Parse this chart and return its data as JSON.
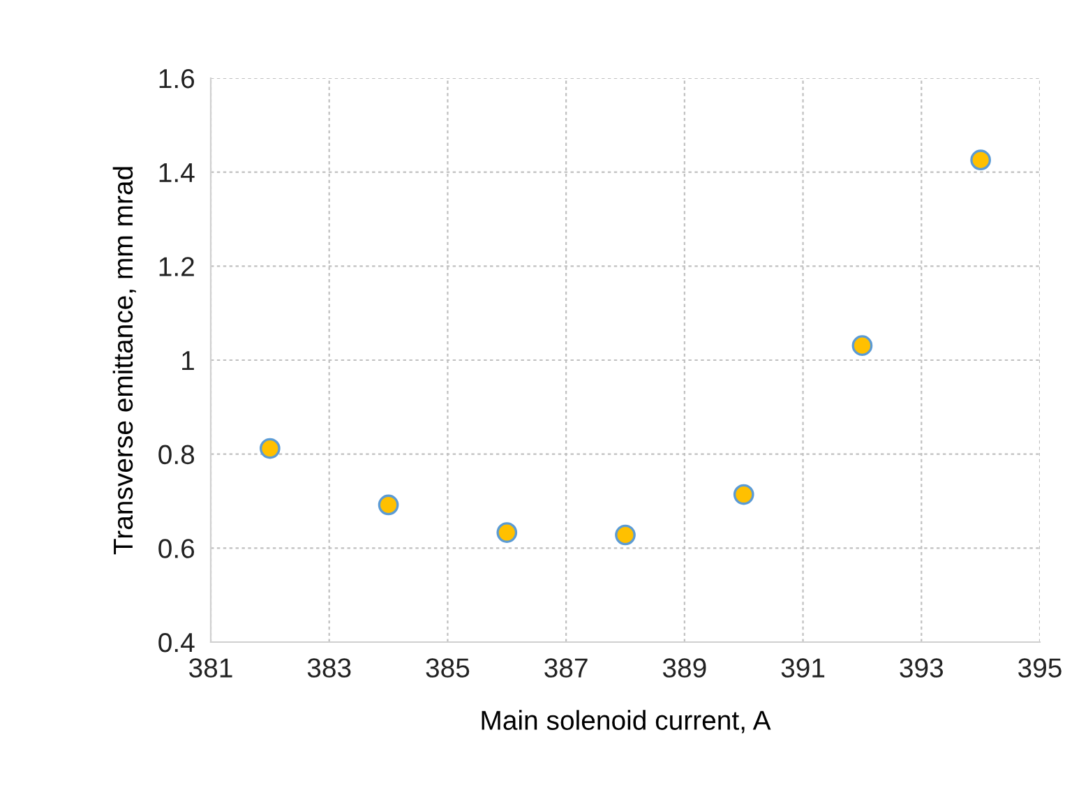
{
  "chart_data": {
    "type": "scatter",
    "xlabel": "Main solenoid current, A",
    "ylabel": "Transverse emittance, mm mrad",
    "x": [
      382,
      384,
      386,
      388,
      390,
      392,
      394
    ],
    "series": [
      {
        "color": "#ffc000",
        "values": [
          0.812,
          0.692,
          0.633,
          0.628,
          0.714,
          1.031,
          1.426
        ]
      }
    ],
    "xlim": [
      381,
      395
    ],
    "xticks": [
      381,
      383,
      385,
      387,
      389,
      391,
      393,
      395
    ],
    "ylim": [
      0.4,
      1.6
    ],
    "yticks": [
      {
        "value": 0.4,
        "label": "0.4"
      },
      {
        "value": 0.6,
        "label": "0.6"
      },
      {
        "value": 0.8,
        "label": "0.8"
      },
      {
        "value": 1.0,
        "label": "1"
      },
      {
        "value": 1.2,
        "label": "1.2"
      },
      {
        "value": 1.4,
        "label": "1.4"
      },
      {
        "value": 1.6,
        "label": "1.6"
      }
    ],
    "grid": true,
    "marker": "circle",
    "legend": false
  }
}
